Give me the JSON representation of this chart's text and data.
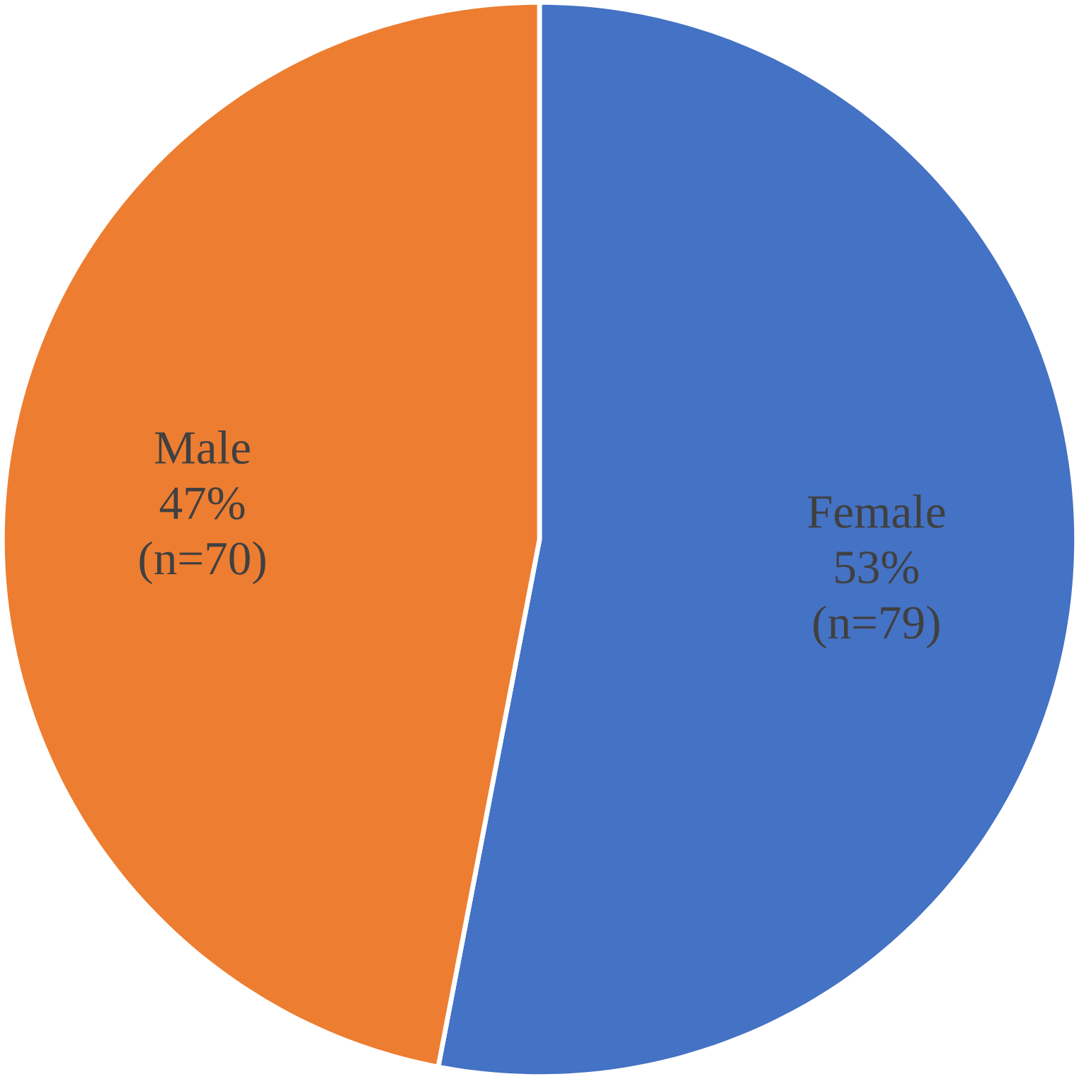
{
  "chart_data": {
    "type": "pie",
    "categories": [
      "Female",
      "Male"
    ],
    "values": [
      79,
      70
    ],
    "colors": [
      "#4472c4",
      "#ed7d31"
    ],
    "value_labels": [
      "53% (n=79)",
      "47% (n=70)"
    ]
  }
}
